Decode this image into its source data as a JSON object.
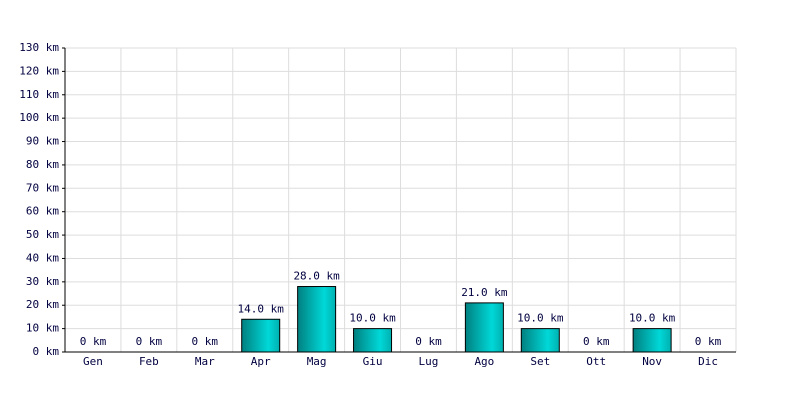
{
  "chart_data": {
    "type": "bar",
    "categories": [
      "Gen",
      "Feb",
      "Mar",
      "Apr",
      "Mag",
      "Giu",
      "Lug",
      "Ago",
      "Set",
      "Ott",
      "Nov",
      "Dic"
    ],
    "values": [
      0,
      0,
      0,
      14,
      28,
      10,
      0,
      21,
      10,
      0,
      10,
      0
    ],
    "value_labels": [
      "0 km",
      "0 km",
      "0 km",
      "14.0 km",
      "28.0 km",
      "10.0 km",
      "0 km",
      "21.0 km",
      "10.0 km",
      "0 km",
      "10.0 km",
      "0 km"
    ],
    "color": "#00d8d8",
    "ylim": [
      0,
      130
    ],
    "yticks": [
      {
        "value": 0,
        "label": "0 km"
      },
      {
        "value": 10,
        "label": "10 km"
      },
      {
        "value": 20,
        "label": "20 km"
      },
      {
        "value": 30,
        "label": "30 km"
      },
      {
        "value": 40,
        "label": "40 km"
      },
      {
        "value": 50,
        "label": "50 km"
      },
      {
        "value": 60,
        "label": "60 km"
      },
      {
        "value": 70,
        "label": "70 km"
      },
      {
        "value": 80,
        "label": "80 km"
      },
      {
        "value": 90,
        "label": "90 km"
      },
      {
        "value": 100,
        "label": "100 km"
      },
      {
        "value": 110,
        "label": "110 km"
      },
      {
        "value": 120,
        "label": "120 km"
      },
      {
        "value": 130,
        "label": "130 km"
      }
    ],
    "grid": true
  }
}
